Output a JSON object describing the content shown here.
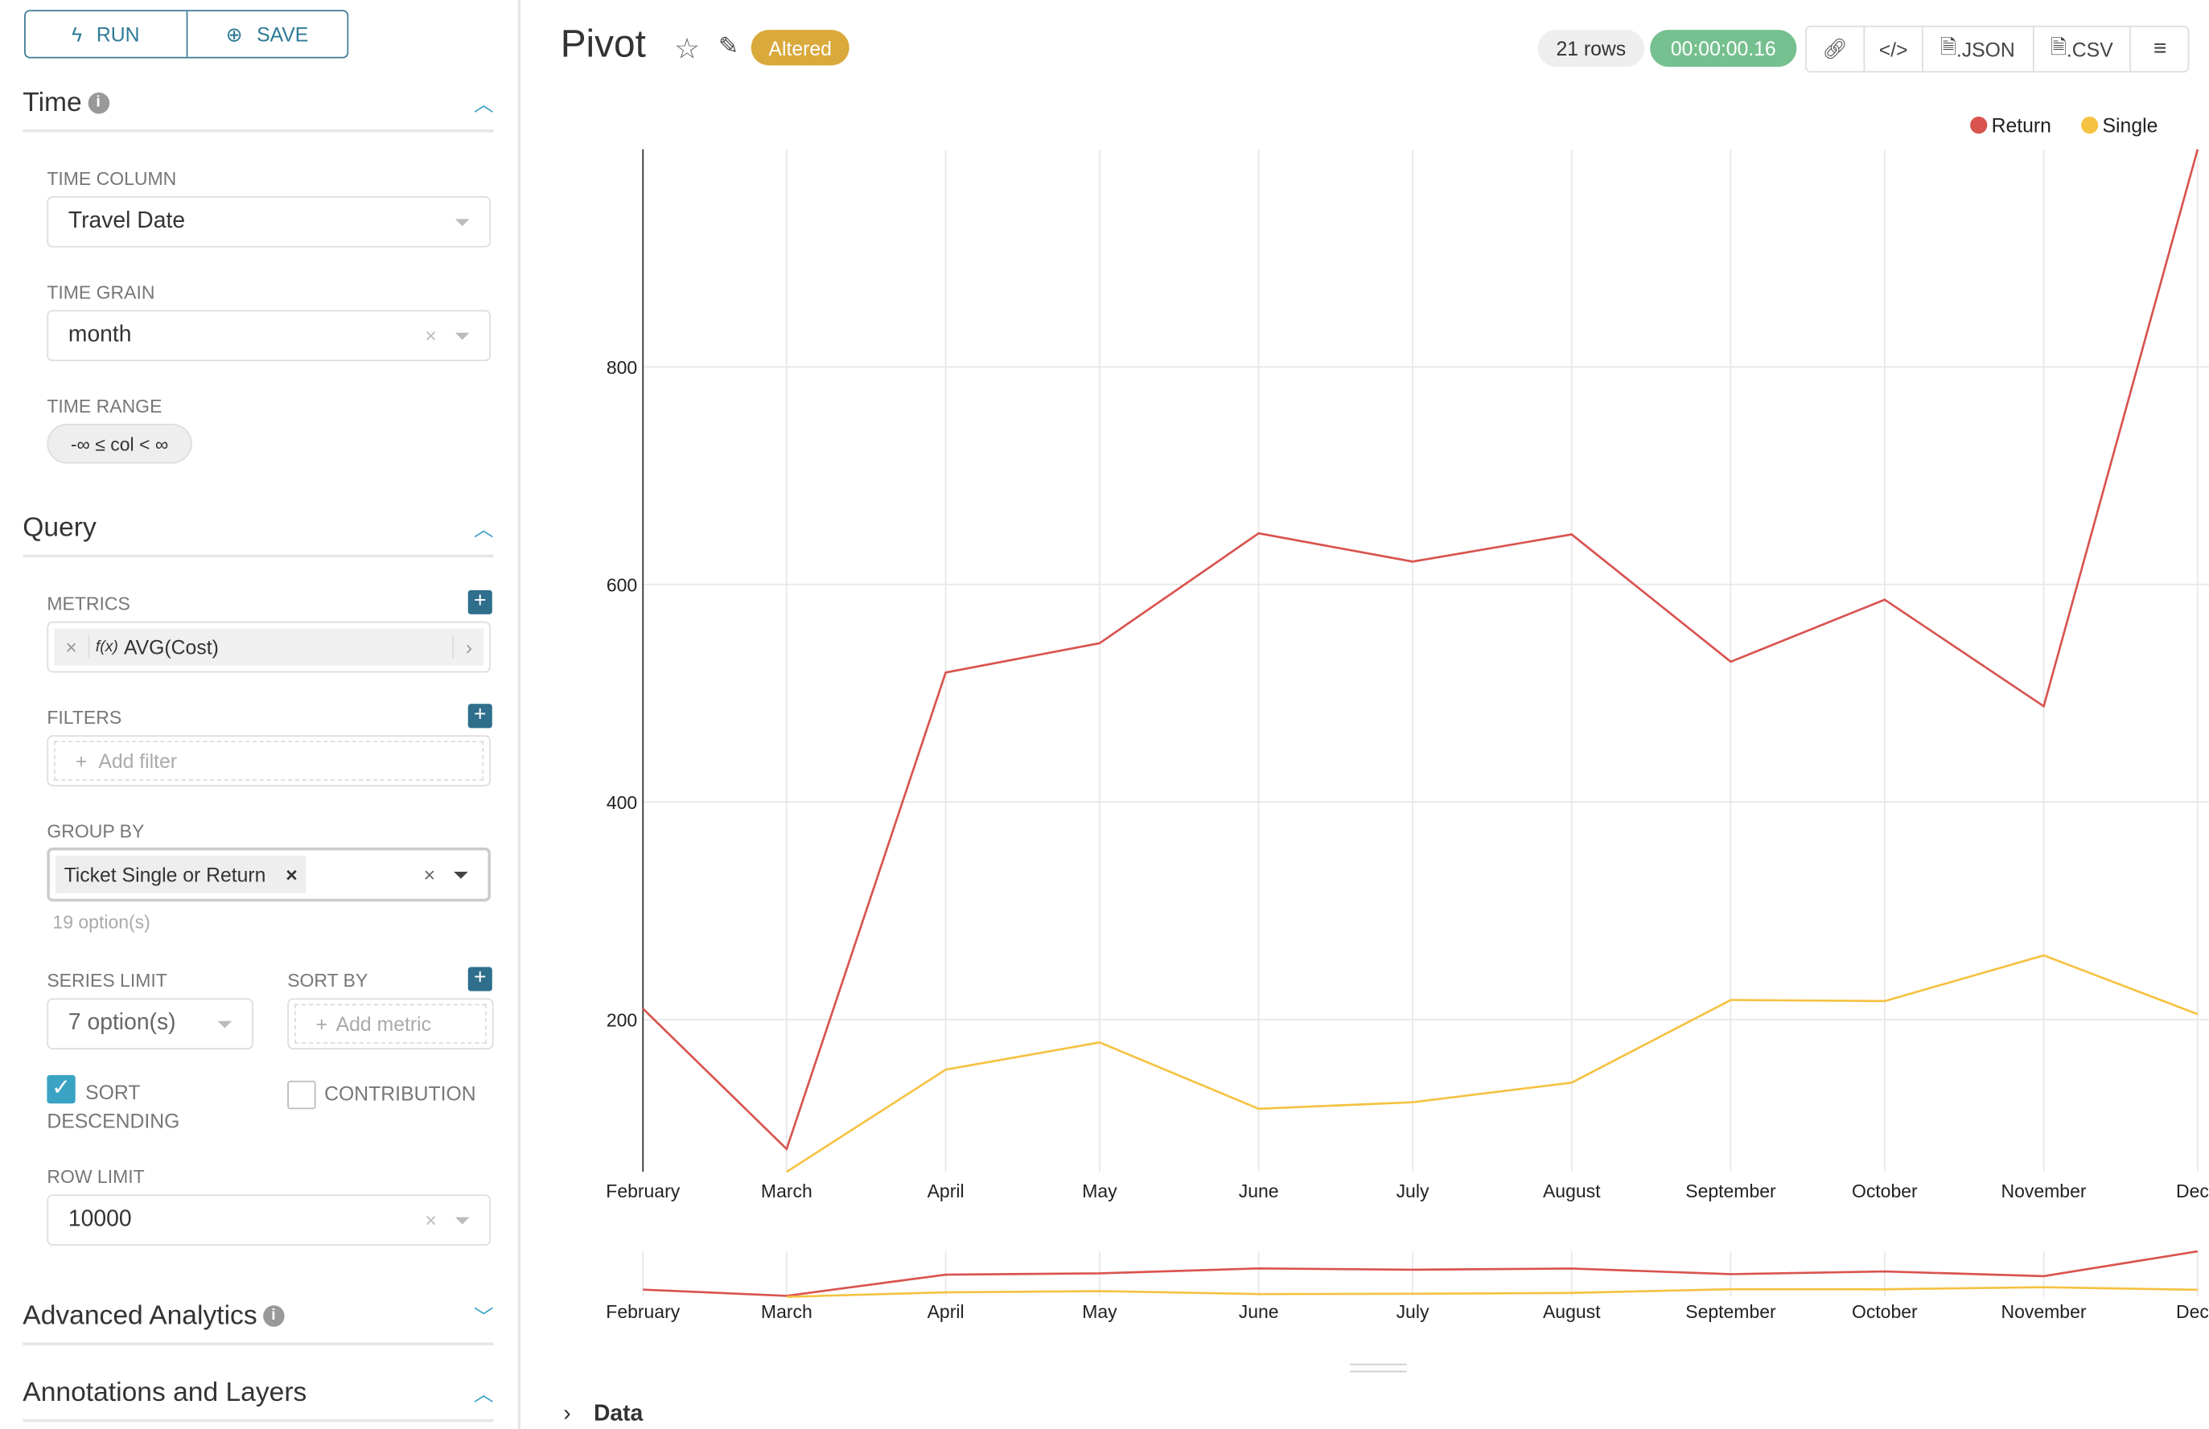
{
  "toolbar": {
    "run_label": "RUN",
    "save_label": "SAVE"
  },
  "sections": {
    "time": {
      "title": "Time",
      "time_column_label": "TIME COLUMN",
      "time_column_value": "Travel Date",
      "time_grain_label": "TIME GRAIN",
      "time_grain_value": "month",
      "time_range_label": "TIME RANGE",
      "time_range_value": "-∞ ≤ col < ∞"
    },
    "query": {
      "title": "Query",
      "metrics_label": "METRICS",
      "metric_value": "AVG(Cost)",
      "metric_fx": "f(x)",
      "filters_label": "FILTERS",
      "filter_placeholder": "Add filter",
      "group_by_label": "GROUP BY",
      "group_by_tag": "Ticket Single or Return",
      "group_by_options": "19 option(s)",
      "series_limit_label": "SERIES LIMIT",
      "series_limit_value": "7 option(s)",
      "sort_by_label": "SORT BY",
      "sort_by_placeholder": "Add metric",
      "sort_desc_label": "SORT DESCENDING",
      "sort_desc_checked": true,
      "contribution_label": "CONTRIBUTION",
      "contribution_checked": false,
      "row_limit_label": "ROW LIMIT",
      "row_limit_value": "10000"
    },
    "advanced": {
      "title": "Advanced Analytics"
    },
    "annotations": {
      "title": "Annotations and Layers"
    }
  },
  "header": {
    "title": "Pivot",
    "status_badge": "Altered",
    "rows": "21 rows",
    "duration": "00:00:00.16",
    "json_label": ".JSON",
    "csv_label": ".CSV"
  },
  "data_section": {
    "label": "Data"
  },
  "colors": {
    "accent": "#2d7a96",
    "return": "#d9534f",
    "single": "#f5c242",
    "altered": "#d9a93b",
    "duration": "#76c08f"
  },
  "chart_data": {
    "type": "line",
    "x": [
      "February",
      "March",
      "April",
      "May",
      "June",
      "July",
      "August",
      "September",
      "October",
      "November",
      "December"
    ],
    "x_tick_labels": [
      "February",
      "March",
      "April",
      "May",
      "June",
      "July",
      "August",
      "September",
      "October",
      "November",
      "Dece"
    ],
    "series": [
      {
        "name": "Return",
        "color": "#d9534f",
        "values": [
          210,
          81,
          519,
          546,
          647,
          621,
          646,
          529,
          586,
          488,
          1000
        ]
      },
      {
        "name": "Single",
        "color": "#f5c242",
        "values": [
          null,
          60,
          154,
          179,
          118,
          124,
          142,
          218,
          217,
          259,
          205
        ]
      }
    ],
    "y_ticks": [
      200,
      400,
      600,
      800
    ],
    "ylim": [
      60,
      1000
    ],
    "grid": true,
    "legend": "top-right"
  }
}
